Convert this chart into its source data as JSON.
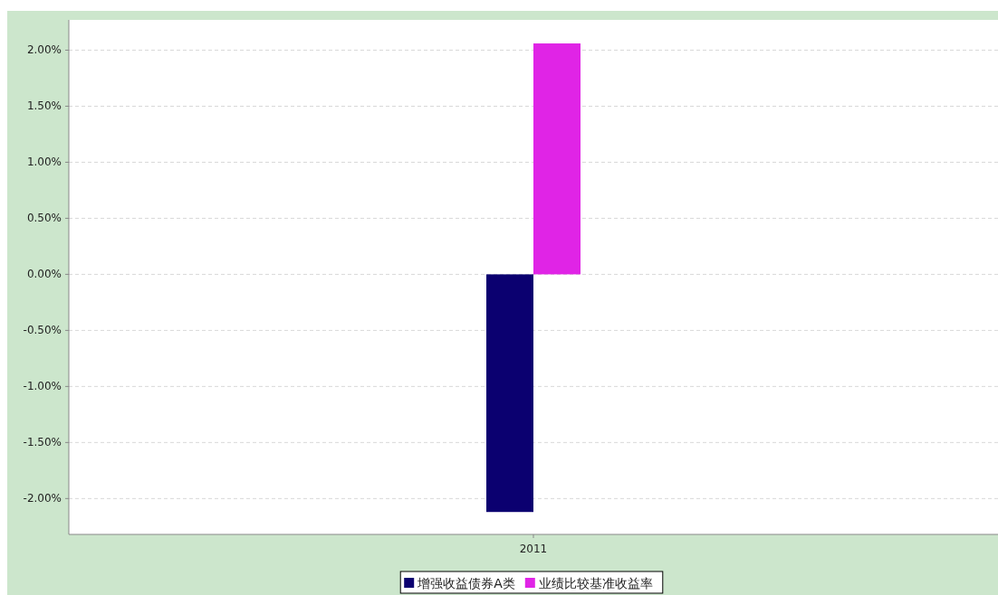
{
  "chart_data": {
    "type": "bar",
    "categories": [
      "2011"
    ],
    "series": [
      {
        "name": "增强收益债券A类",
        "color": "#0b0070",
        "values": [
          -2.12
        ]
      },
      {
        "name": "业绩比较基准收益率",
        "color": "#e024e6",
        "values": [
          2.06
        ]
      }
    ],
    "ylim": [
      -2.32,
      2.27
    ],
    "yticks": [
      {
        "value": 2,
        "label": "2.00%"
      },
      {
        "value": 1.5,
        "label": "1.50%"
      },
      {
        "value": 1,
        "label": "1.00%"
      },
      {
        "value": 0.5,
        "label": "0.50%"
      },
      {
        "value": 0,
        "label": "0.00%"
      },
      {
        "value": -0.5,
        "label": "-0.50%"
      },
      {
        "value": -1,
        "label": "-1.00%"
      },
      {
        "value": -1.5,
        "label": "-1.50%"
      },
      {
        "value": -2,
        "label": "-2.00%"
      }
    ],
    "grid": "y",
    "legend": "bottom"
  }
}
